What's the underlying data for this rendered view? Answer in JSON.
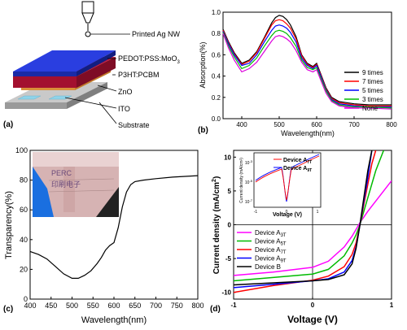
{
  "panel_a": {
    "label": "(a)",
    "layers": [
      "Printed Ag NW",
      "PEDOT:PSS:MoO",
      "P3HT:PCBM",
      "ZnO",
      "ITO",
      "Substrate"
    ],
    "pedot_subscript": "3",
    "colors": {
      "pedot": "#2233cc",
      "p3ht": "#b5123a",
      "zno": "#e9a95a",
      "ito": "#9fd8ea",
      "substrate": "#b3b3b3"
    }
  },
  "chart_data": [
    {
      "panel": "(b)",
      "type": "line",
      "xlabel": "Wavelength(nm)",
      "ylabel": "Absorption(%)",
      "xlim": [
        350,
        800
      ],
      "ylim": [
        0.0,
        1.0
      ],
      "xticks": [
        "400",
        "500",
        "600",
        "700",
        "800"
      ],
      "yticks": [
        "0.0",
        "0.2",
        "0.4",
        "0.6",
        "0.8",
        "1.0"
      ],
      "legend_position": "bottom-right",
      "x": [
        350,
        365,
        380,
        400,
        420,
        440,
        460,
        480,
        490,
        500,
        510,
        520,
        530,
        545,
        560,
        575,
        590,
        600,
        610,
        625,
        640,
        660,
        680,
        700,
        740,
        800
      ],
      "series": [
        {
          "name": "9 times",
          "color": "#000000",
          "values": [
            0.84,
            0.72,
            0.62,
            0.52,
            0.55,
            0.63,
            0.76,
            0.9,
            0.95,
            0.97,
            0.96,
            0.93,
            0.88,
            0.77,
            0.6,
            0.52,
            0.49,
            0.52,
            0.43,
            0.29,
            0.2,
            0.16,
            0.15,
            0.14,
            0.13,
            0.13
          ]
        },
        {
          "name": "7 times",
          "color": "#ff0000",
          "values": [
            0.83,
            0.71,
            0.61,
            0.51,
            0.54,
            0.62,
            0.75,
            0.88,
            0.92,
            0.93,
            0.92,
            0.89,
            0.85,
            0.75,
            0.59,
            0.51,
            0.48,
            0.51,
            0.42,
            0.28,
            0.19,
            0.15,
            0.14,
            0.13,
            0.12,
            0.12
          ]
        },
        {
          "name": "5 times",
          "color": "#0000ff",
          "values": [
            0.82,
            0.7,
            0.6,
            0.5,
            0.52,
            0.6,
            0.72,
            0.83,
            0.87,
            0.88,
            0.87,
            0.85,
            0.81,
            0.72,
            0.57,
            0.5,
            0.47,
            0.5,
            0.41,
            0.27,
            0.18,
            0.14,
            0.13,
            0.12,
            0.11,
            0.11
          ]
        },
        {
          "name": "3 times",
          "color": "#00bb00",
          "values": [
            0.81,
            0.68,
            0.58,
            0.47,
            0.5,
            0.57,
            0.68,
            0.78,
            0.82,
            0.83,
            0.82,
            0.8,
            0.76,
            0.68,
            0.55,
            0.48,
            0.46,
            0.48,
            0.39,
            0.26,
            0.17,
            0.13,
            0.12,
            0.11,
            0.11,
            0.1
          ]
        },
        {
          "name": "None",
          "color": "#dd00dd",
          "values": [
            0.8,
            0.66,
            0.55,
            0.44,
            0.47,
            0.53,
            0.63,
            0.73,
            0.77,
            0.78,
            0.77,
            0.75,
            0.72,
            0.64,
            0.53,
            0.46,
            0.44,
            0.46,
            0.37,
            0.24,
            0.16,
            0.12,
            0.11,
            0.1,
            0.1,
            0.09
          ]
        }
      ]
    },
    {
      "panel": "(c)",
      "type": "line",
      "xlabel": "Wavelength(nm)",
      "ylabel": "Transparency(%)",
      "xlim": [
        400,
        800
      ],
      "ylim": [
        0,
        100
      ],
      "xticks": [
        "400",
        "450",
        "500",
        "550",
        "600",
        "650",
        "700",
        "750",
        "800"
      ],
      "yticks": [
        "0",
        "20",
        "40",
        "60",
        "80",
        "100"
      ],
      "inset_photo_text": [
        "PERC",
        "印刷电子"
      ],
      "series": [
        {
          "name": "",
          "color": "#000000",
          "x": [
            400,
            420,
            440,
            460,
            480,
            500,
            515,
            530,
            545,
            560,
            570,
            580,
            590,
            600,
            610,
            620,
            630,
            640,
            650,
            670,
            700,
            740,
            800
          ],
          "values": [
            32,
            30,
            27,
            22,
            17,
            14,
            14,
            16,
            19,
            24,
            28,
            33,
            36,
            38,
            48,
            62,
            72,
            77,
            79,
            80,
            81,
            82,
            83
          ]
        }
      ]
    },
    {
      "panel": "(d)",
      "type": "line",
      "xlabel": "Voltage (V)",
      "ylabel": "Current density (mA/cm²)",
      "xlim": [
        -1,
        1
      ],
      "ylim": [
        -11,
        11
      ],
      "xticks": [
        "-1",
        "0",
        "1"
      ],
      "yticks": [
        "-10",
        "-5",
        "0",
        "5",
        "10"
      ],
      "legend_position": "bottom-left",
      "series": [
        {
          "name": "Device A",
          "sub": "3T",
          "color": "#ff00ff",
          "x": [
            -1.0,
            -0.5,
            0.0,
            0.2,
            0.4,
            0.5,
            0.6,
            0.7,
            0.8,
            0.9,
            1.0
          ],
          "values": [
            -7.5,
            -7.0,
            -6.3,
            -5.4,
            -3.3,
            -1.7,
            0.3,
            2.0,
            3.5,
            5.0,
            6.5
          ]
        },
        {
          "name": "Device A",
          "sub": "5T",
          "color": "#00bb00",
          "x": [
            -1.0,
            -0.5,
            0.0,
            0.2,
            0.4,
            0.5,
            0.55,
            0.6,
            0.65,
            0.7,
            0.8,
            0.9
          ],
          "values": [
            -8.3,
            -7.8,
            -7.3,
            -6.6,
            -4.6,
            -2.7,
            -1.5,
            0.0,
            2.0,
            4.0,
            8.0,
            11.0
          ]
        },
        {
          "name": "Device A",
          "sub": "7T",
          "color": "#ff0000",
          "x": [
            -1.0,
            -0.5,
            0.0,
            0.2,
            0.4,
            0.5,
            0.55,
            0.6,
            0.65,
            0.7,
            0.75,
            0.8
          ],
          "values": [
            -10.0,
            -9.0,
            -8.2,
            -7.6,
            -6.2,
            -4.4,
            -2.7,
            0.0,
            3.0,
            6.0,
            9.0,
            11.0
          ]
        },
        {
          "name": "Device A",
          "sub": "9T",
          "color": "#0000ff",
          "x": [
            -1.0,
            -0.5,
            0.0,
            0.2,
            0.4,
            0.5,
            0.55,
            0.6,
            0.65,
            0.7,
            0.75
          ],
          "values": [
            -9.3,
            -8.8,
            -8.3,
            -8.0,
            -7.0,
            -5.3,
            -3.3,
            0.0,
            3.5,
            7.0,
            11.0
          ]
        },
        {
          "name": "Device B",
          "sub": "",
          "color": "#000000",
          "x": [
            -1.0,
            -0.5,
            0.0,
            0.2,
            0.4,
            0.5,
            0.55,
            0.6,
            0.65,
            0.7,
            0.75
          ],
          "values": [
            -8.9,
            -8.6,
            -8.3,
            -8.1,
            -7.4,
            -5.8,
            -3.5,
            0.0,
            4.0,
            8.0,
            11.0
          ]
        }
      ],
      "inset": {
        "ylabel": "Current density (mA/cm²)",
        "xlabel": "Voltage (V)",
        "xticks": [
          "-1",
          "0",
          "1"
        ],
        "ytick_bases": [
          "10",
          "10",
          "10"
        ],
        "ytick_exps": [
          "-3",
          "-5",
          "-7"
        ],
        "legend": [
          {
            "name": "Device A",
            "sub": "7T",
            "color": "#ff0000"
          },
          {
            "name": "Device A",
            "sub": "9T",
            "color": "#0000ff"
          }
        ]
      }
    }
  ],
  "panel_labels": {
    "b": "(b)",
    "c": "(c)",
    "d": "(d)"
  }
}
